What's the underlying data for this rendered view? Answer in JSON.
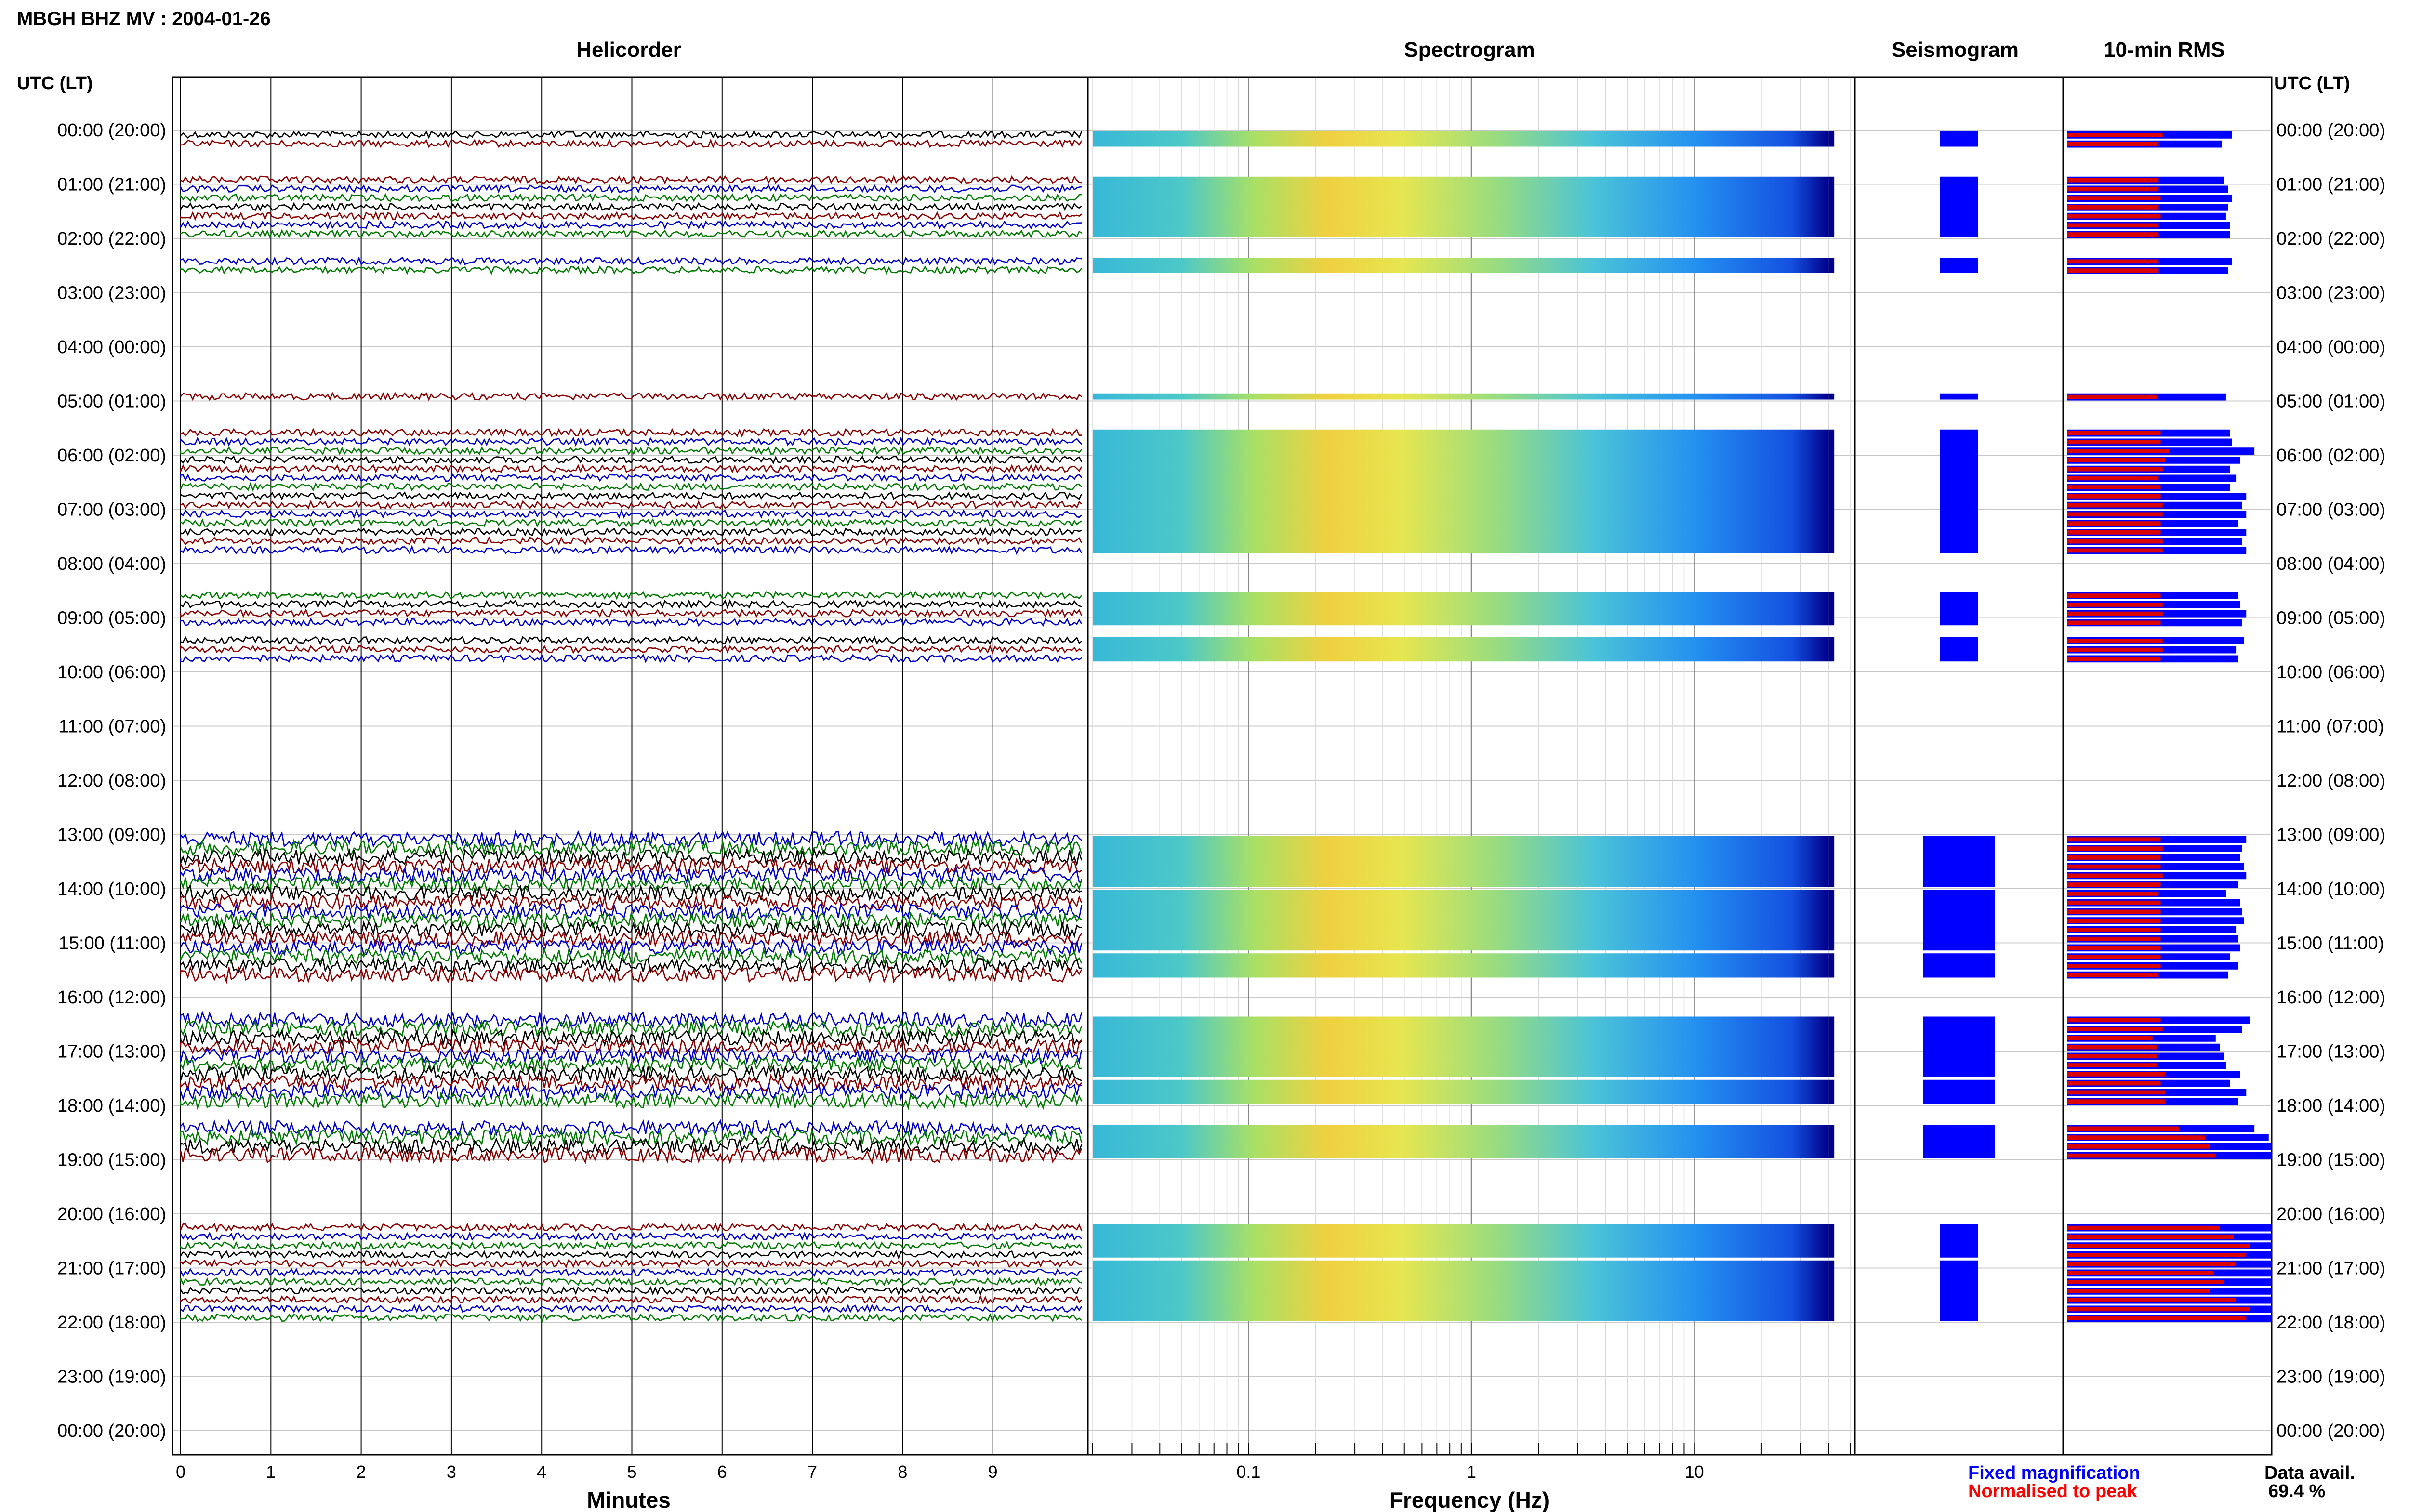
{
  "title": "MBGH BHZ MV : 2004-01-26",
  "utc_label_left": "UTC (LT)",
  "utc_label_right": "UTC (LT)",
  "panel_titles": {
    "helicorder": "Helicorder",
    "spectrogram": "Spectrogram",
    "seismogram": "Seismogram",
    "rms": "10-min RMS"
  },
  "x_labels": {
    "helicorder": "Minutes",
    "spectrogram": "Frequency (Hz)"
  },
  "legend": {
    "fixed": "Fixed magnification",
    "normalised": "Normalised to peak",
    "fixed_color": "#0000ff",
    "normalised_color": "#ff0000"
  },
  "data_avail": {
    "label": "Data avail.",
    "value": "69.4 %"
  },
  "colors": {
    "trace": [
      "#000000",
      "#8b0000",
      "#0000cd",
      "#007a00"
    ],
    "rms_fixed": "#0000ff",
    "rms_norm": "#dd0000"
  },
  "chart_data": {
    "type": "heatmap",
    "time_labels": [
      "00:00 (20:00)",
      "01:00 (21:00)",
      "02:00 (22:00)",
      "03:00 (23:00)",
      "04:00 (00:00)",
      "05:00 (01:00)",
      "06:00 (02:00)",
      "07:00 (03:00)",
      "08:00 (04:00)",
      "09:00 (05:00)",
      "10:00 (06:00)",
      "11:00 (07:00)",
      "12:00 (08:00)",
      "13:00 (09:00)",
      "14:00 (10:00)",
      "15:00 (11:00)",
      "16:00 (12:00)",
      "17:00 (13:00)",
      "18:00 (14:00)",
      "19:00 (15:00)",
      "20:00 (16:00)",
      "21:00 (17:00)",
      "22:00 (18:00)",
      "23:00 (19:00)",
      "00:00 (20:00)"
    ],
    "helicorder_x_ticks": [
      "0",
      "1",
      "2",
      "3",
      "4",
      "5",
      "6",
      "7",
      "8",
      "9"
    ],
    "spectrogram_x_ticks": [
      {
        "value": 0.1,
        "label": "0.1"
      },
      {
        "value": 1,
        "label": "1"
      },
      {
        "value": 10,
        "label": "10"
      }
    ],
    "spectrogram_x_range_hz": [
      0.02,
      50
    ],
    "data_rows_10min": [
      [
        0,
        2
      ],
      [
        5,
        12
      ],
      [
        14,
        16
      ],
      [
        29,
        30
      ],
      [
        33,
        47
      ],
      [
        51,
        55
      ],
      [
        56,
        59
      ],
      [
        78,
        84
      ],
      [
        84,
        91
      ],
      [
        91,
        94
      ],
      [
        98,
        105
      ],
      [
        105,
        108
      ],
      [
        110,
        114
      ],
      [
        121,
        125
      ],
      [
        125,
        132
      ]
    ],
    "rms_fixed_fraction": [
      0.81,
      0.76,
      0.77,
      0.79,
      0.81,
      0.79,
      0.78,
      0.8,
      0.8,
      0.81,
      0.79,
      0.78,
      0.8,
      0.81,
      0.92,
      0.85,
      0.8,
      0.83,
      0.8,
      0.88,
      0.86,
      0.88,
      0.84,
      0.88,
      0.86,
      0.88,
      0.84,
      0.85,
      0.88,
      0.86,
      0.87,
      0.83,
      0.84,
      0.88,
      0.86,
      0.85,
      0.87,
      0.88,
      0.84,
      0.78,
      0.85,
      0.86,
      0.87,
      0.83,
      0.84,
      0.85,
      0.8,
      0.84,
      0.79,
      0.9,
      0.86,
      0.73,
      0.75,
      0.77,
      0.78,
      0.85,
      0.8,
      0.88,
      0.84,
      0.92,
      0.99,
      1.0,
      1.0,
      1.0,
      1.0,
      1.0,
      1.0,
      1.0,
      1.0,
      1.0,
      1.0,
      1.0,
      1.0,
      1.0,
      1.0,
      1.0,
      1.0,
      1.0,
      1.0,
      1.0,
      1.0,
      1.0,
      1.0,
      1.0,
      1.0,
      1.0,
      1.0,
      1.0,
      1.0,
      1.0,
      1.0,
      0.97,
      0.8,
      0.78,
      0.95,
      0.92,
      0.78,
      0.73,
      0.73,
      0.72,
      0.71,
      0.78,
      0.79,
      0.86,
      0.82,
      0.8,
      0.79,
      0.75,
      0.78,
      0.72,
      0.82,
      0.74
    ],
    "rms_norm_fraction": [
      0.47,
      0.45,
      0.45,
      0.45,
      0.46,
      0.45,
      0.46,
      0.45,
      0.45,
      0.45,
      0.45,
      0.44,
      0.46,
      0.46,
      0.5,
      0.48,
      0.47,
      0.45,
      0.46,
      0.46,
      0.47,
      0.47,
      0.46,
      0.46,
      0.47,
      0.47,
      0.46,
      0.47,
      0.47,
      0.46,
      0.47,
      0.47,
      0.46,
      0.46,
      0.47,
      0.46,
      0.46,
      0.47,
      0.46,
      0.45,
      0.46,
      0.46,
      0.46,
      0.46,
      0.46,
      0.46,
      0.46,
      0.46,
      0.45,
      0.46,
      0.47,
      0.42,
      0.44,
      0.44,
      0.44,
      0.48,
      0.46,
      0.48,
      0.48,
      0.55,
      0.68,
      0.7,
      0.73,
      0.75,
      0.82,
      0.9,
      0.88,
      0.83,
      0.72,
      0.77,
      0.7,
      0.83,
      0.9,
      0.88,
      0.75,
      0.77,
      0.72,
      0.7,
      0.72,
      0.68,
      0.66,
      0.72,
      0.74,
      0.7,
      0.68,
      0.65,
      0.72,
      0.8,
      0.75,
      0.71,
      0.68,
      0.76,
      0.52,
      0.45,
      0.52,
      0.55,
      0.5,
      0.42,
      0.42,
      0.41,
      0.41,
      0.45,
      0.46,
      0.5,
      0.48,
      0.45,
      0.44,
      0.43,
      0.45,
      0.42,
      0.47,
      0.41
    ]
  }
}
